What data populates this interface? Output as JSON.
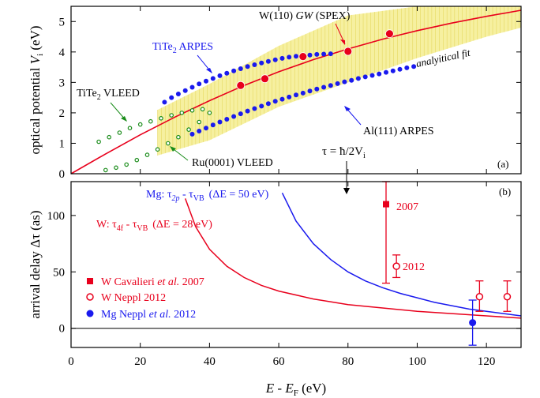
{
  "figure": {
    "top_ylabel_main": "optical potential ",
    "top_ylabel_sym": "V",
    "top_ylabel_sub": "i",
    "top_ylabel_unit": " (eV)",
    "bottom_ylabel_main": "arrival delay Δτ",
    "bottom_ylabel_unit": " (as)",
    "xlabel_e": "E",
    "xlabel_minus": " - ",
    "xlabel_ef": "E",
    "xlabel_ef_sub": "F",
    "xlabel_unit": " (eV)",
    "tau_formula": "τ = ħ/2V",
    "tau_formula_sub": "i",
    "panel_a": "(a)",
    "panel_b": "(b)"
  },
  "colors": {
    "red": "#e8001c",
    "blue": "#1a1aee",
    "green": "#1a8c1a",
    "band": "#f6f0a0",
    "band_line": "#e6d860"
  },
  "chart_data": [
    {
      "type": "scatter",
      "title": "",
      "xlabel": "E - E_F (eV)",
      "ylabel": "optical potential V_i (eV)",
      "xlim": [
        0,
        130
      ],
      "ylim": [
        0,
        5.5
      ],
      "xticks": [
        0,
        20,
        40,
        60,
        80,
        100,
        120
      ],
      "yticks": [
        0,
        1,
        2,
        3,
        4,
        5
      ],
      "grid": false,
      "annotations": {
        "w_gw_prefix": "W(110) ",
        "w_gw_italic": "GW",
        "w_gw_suffix": " (SPEX)",
        "tite2_arpes": "TiTe",
        "tite2_arpes_sub": "2",
        "tite2_arpes_suffix": " ARPES",
        "tite2_vleed": "TiTe",
        "tite2_vleed_sub": "2",
        "tite2_vleed_suffix": " VLEED",
        "al_arpes": "Al(111) ARPES",
        "ru_vleed": "Ru(0001) VLEED",
        "fit_label": "analyitical fit"
      },
      "series": [
        {
          "name": "analytical fit",
          "kind": "line",
          "x": [
            0,
            10,
            20,
            30,
            40,
            50,
            60,
            70,
            80,
            90,
            100,
            110,
            120,
            130
          ],
          "y": [
            0.0,
            0.65,
            1.28,
            1.86,
            2.4,
            2.9,
            3.35,
            3.75,
            4.1,
            4.42,
            4.7,
            4.95,
            5.17,
            5.37
          ]
        },
        {
          "name": "fit band",
          "kind": "band",
          "x": [
            25,
            40,
            60,
            80,
            100,
            120,
            130
          ],
          "low": [
            0.6,
            1.1,
            2.2,
            3.0,
            3.8,
            4.5,
            4.8
          ],
          "high": [
            2.1,
            2.95,
            4.2,
            5.2,
            5.5,
            5.5,
            5.5
          ]
        },
        {
          "name": "W(110) GW (SPEX)",
          "kind": "points",
          "x": [
            49,
            56,
            67,
            80,
            92
          ],
          "y": [
            2.9,
            3.12,
            3.85,
            4.02,
            4.6
          ]
        },
        {
          "name": "TiTe2 ARPES",
          "kind": "points",
          "x": [
            27,
            29,
            31,
            33,
            35,
            37,
            39,
            41,
            43,
            45,
            47,
            49,
            51,
            53,
            55,
            57,
            59,
            61,
            63,
            65,
            67,
            69,
            71,
            73,
            75
          ],
          "y": [
            2.35,
            2.5,
            2.62,
            2.73,
            2.84,
            2.95,
            3.04,
            3.13,
            3.22,
            3.3,
            3.38,
            3.45,
            3.52,
            3.58,
            3.64,
            3.69,
            3.74,
            3.79,
            3.83,
            3.86,
            3.88,
            3.9,
            3.92,
            3.93,
            3.94
          ]
        },
        {
          "name": "Al(111) ARPES",
          "kind": "points",
          "x": [
            35,
            37,
            39,
            41,
            43,
            45,
            47,
            49,
            51,
            53,
            55,
            57,
            59,
            61,
            63,
            65,
            67,
            69,
            71,
            73,
            75,
            77,
            79,
            81,
            83,
            85,
            87,
            89,
            91,
            93,
            95,
            97,
            99
          ],
          "y": [
            1.3,
            1.4,
            1.5,
            1.6,
            1.7,
            1.79,
            1.88,
            1.97,
            2.06,
            2.14,
            2.22,
            2.3,
            2.38,
            2.45,
            2.52,
            2.59,
            2.65,
            2.72,
            2.78,
            2.84,
            2.9,
            2.96,
            3.02,
            3.07,
            3.13,
            3.18,
            3.23,
            3.28,
            3.33,
            3.38,
            3.43,
            3.48,
            3.52
          ]
        },
        {
          "name": "TiTe2 VLEED",
          "kind": "open-points",
          "x": [
            8,
            11,
            14,
            17,
            20,
            23,
            26,
            29,
            32,
            35,
            38
          ],
          "y": [
            1.05,
            1.2,
            1.35,
            1.5,
            1.62,
            1.72,
            1.82,
            1.92,
            2.0,
            2.08,
            2.12
          ]
        },
        {
          "name": "Ru(0001) VLEED",
          "kind": "open-points",
          "x": [
            10,
            13,
            16,
            19,
            22,
            25,
            28,
            31,
            34,
            37,
            40
          ],
          "y": [
            0.12,
            0.2,
            0.3,
            0.45,
            0.62,
            0.8,
            1.0,
            1.2,
            1.45,
            1.7,
            2.0
          ]
        }
      ]
    },
    {
      "type": "scatter",
      "title": "",
      "xlabel": "E - E_F (eV)",
      "ylabel": "arrival delay Δτ (as)",
      "xlim": [
        0,
        130
      ],
      "ylim": [
        -17,
        130
      ],
      "xticks": [
        0,
        20,
        40,
        60,
        80,
        100,
        120
      ],
      "yticks": [
        0,
        50,
        100
      ],
      "grid": false,
      "annotations": {
        "mg_curve": "Mg: τ",
        "mg_curve_sub1": "2p",
        "mg_curve_mid": " - τ",
        "mg_curve_sub2": "VB",
        "mg_curve_de": "(ΔE = 50 eV)",
        "w_curve": "W: τ",
        "w_curve_sub1": "4f",
        "w_curve_mid": " - τ",
        "w_curve_sub2": "VB",
        "w_curve_de": "(ΔE = 28 eV)",
        "label_2007": "2007",
        "label_2012": "2012"
      },
      "legend": {
        "placement": "bottom-left",
        "entries": [
          {
            "name": "W Cavalieri",
            "italic": " et al.",
            "suffix": " 2007",
            "marker": "filled-square",
            "color": "red"
          },
          {
            "name": "W  Neppl 2012",
            "italic": "",
            "suffix": "",
            "marker": "open-circle",
            "color": "red"
          },
          {
            "name": "Mg Neppl",
            "italic": " et al.",
            "suffix": " 2012",
            "marker": "filled-circle",
            "color": "blue"
          }
        ]
      },
      "series": [
        {
          "name": "W: τ4f - τVB (ΔE = 28 eV)",
          "kind": "line",
          "x": [
            33,
            36,
            40,
            45,
            50,
            55,
            60,
            70,
            80,
            90,
            100,
            110,
            120,
            130
          ],
          "y": [
            115,
            90,
            70,
            55,
            45,
            38,
            33,
            26,
            21,
            18,
            15,
            13,
            11,
            9
          ]
        },
        {
          "name": "Mg: τ2p - τVB (ΔE = 50 eV)",
          "kind": "line",
          "x": [
            61,
            65,
            70,
            75,
            80,
            85,
            90,
            95,
            100,
            105,
            110,
            115,
            120,
            125,
            130
          ],
          "y": [
            120,
            95,
            75,
            61,
            50,
            42,
            36,
            31,
            27,
            23,
            20,
            17,
            15,
            13,
            11
          ]
        },
        {
          "name": "W Cavalieri et al. 2007",
          "kind": "points",
          "x": [
            91
          ],
          "y": [
            110
          ],
          "error_low": [
            40
          ],
          "error_high": [
            130
          ]
        },
        {
          "name": "W Neppl 2012",
          "kind": "points",
          "x": [
            94,
            118,
            126
          ],
          "y": [
            55,
            28,
            28
          ],
          "error_low": [
            45,
            15,
            15
          ],
          "error_high": [
            65,
            42,
            42
          ]
        },
        {
          "name": "Mg Neppl et al. 2012",
          "kind": "points",
          "x": [
            116
          ],
          "y": [
            5
          ],
          "error_low": [
            -15
          ],
          "error_high": [
            25
          ]
        }
      ]
    }
  ]
}
